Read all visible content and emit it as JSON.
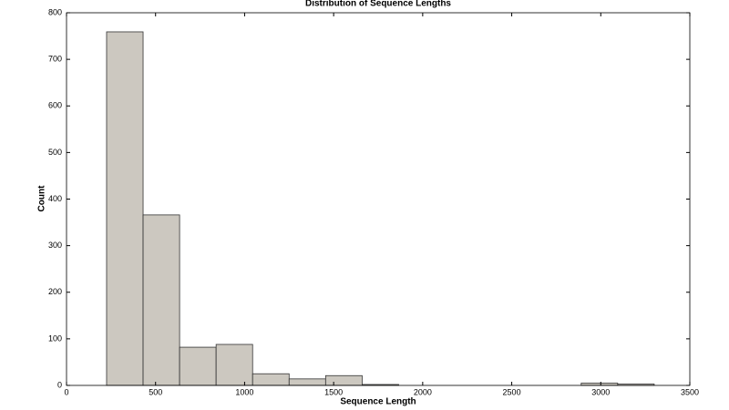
{
  "chart_data": {
    "type": "histogram",
    "title": "Distribution of Sequence Lengths",
    "x_label": "Sequence Length",
    "y_label": "Count",
    "bins": [
      225,
      430,
      635,
      840,
      1045,
      1250,
      1455,
      1660,
      1865,
      2070,
      2275,
      2480,
      2685,
      2890,
      3095,
      3300
    ],
    "counts": [
      759,
      366,
      82,
      88,
      25,
      14,
      21,
      2,
      0,
      0,
      0,
      0,
      0,
      5,
      3
    ],
    "color": "#ccc8c0",
    "edge_color": "#333333",
    "xlim": [
      0,
      3500
    ],
    "xticks": [
      0,
      500,
      1000,
      1500,
      2000,
      2500,
      3000,
      3500
    ],
    "ylim": [
      0,
      800
    ],
    "yticks": [
      0,
      100,
      200,
      300,
      400,
      500,
      600,
      700,
      800
    ]
  }
}
